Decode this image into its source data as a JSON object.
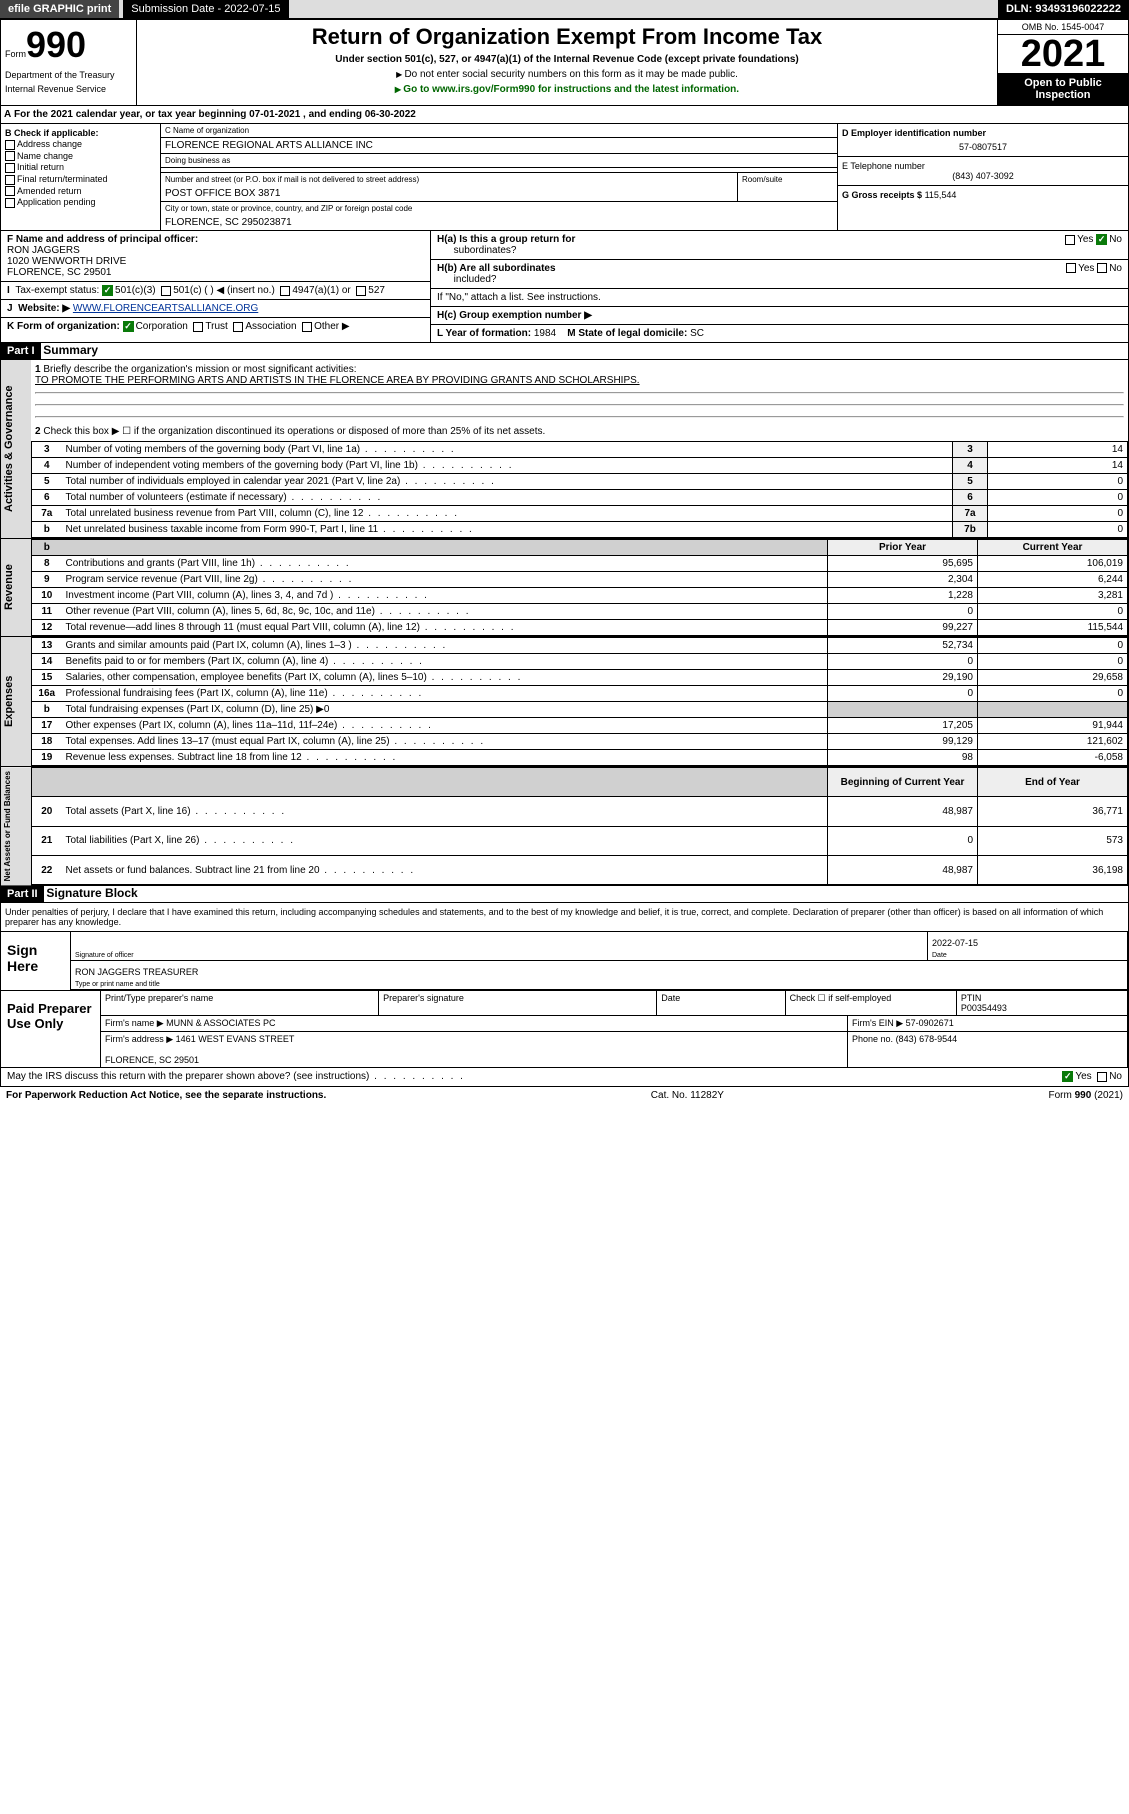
{
  "topbar": {
    "efile": "efile GRAPHIC print",
    "subdate_label": "Submission Date - 2022-07-15",
    "dln": "DLN: 93493196022222"
  },
  "header": {
    "form_word": "Form",
    "form_no": "990",
    "title": "Return of Organization Exempt From Income Tax",
    "subtitle": "Under section 501(c), 527, or 4947(a)(1) of the Internal Revenue Code (except private foundations)",
    "warn": "Do not enter social security numbers on this form as it may be made public.",
    "go": "Go to www.irs.gov/Form990 for instructions and the latest information.",
    "dept": "Department of the Treasury",
    "irs": "Internal Revenue Service",
    "omb": "OMB No. 1545-0047",
    "year": "2021",
    "open": "Open to Public",
    "inspect": "Inspection"
  },
  "A": {
    "text": "For the 2021 calendar year, or tax year beginning 07-01-2021   , and ending 06-30-2022"
  },
  "B": {
    "hdr": "B Check if applicable:",
    "items": [
      "Address change",
      "Name change",
      "Initial return",
      "Final return/terminated",
      "Amended return",
      "Application pending"
    ]
  },
  "C": {
    "name_lbl": "C Name of organization",
    "name": "FLORENCE REGIONAL ARTS ALLIANCE INC",
    "dba_lbl": "Doing business as",
    "dba": "",
    "addr_lbl": "Number and street (or P.O. box if mail is not delivered to street address)",
    "room_lbl": "Room/suite",
    "addr": "POST OFFICE BOX 3871",
    "city_lbl": "City or town, state or province, country, and ZIP or foreign postal code",
    "city": "FLORENCE, SC  295023871"
  },
  "D": {
    "lbl": "D Employer identification number",
    "val": "57-0807517"
  },
  "E": {
    "lbl": "E Telephone number",
    "val": "(843) 407-3092"
  },
  "G": {
    "lbl": "G Gross receipts $",
    "val": "115,544"
  },
  "F": {
    "lbl": "F  Name and address of principal officer:",
    "name": "RON JAGGERS",
    "addr1": "1020 WENWORTH DRIVE",
    "addr2": "FLORENCE, SC  29501"
  },
  "H": {
    "a": "H(a)  Is this a group return for",
    "a2": "subordinates?",
    "b": "H(b)  Are all subordinates",
    "b2": "included?",
    "note": "If \"No,\" attach a list. See instructions.",
    "c": "H(c)  Group exemption number ▶",
    "yes": "Yes",
    "no": "No"
  },
  "I": {
    "lbl": "Tax-exempt status:",
    "opts": [
      "501(c)(3)",
      "501(c) (  ) ◀ (insert no.)",
      "4947(a)(1) or",
      "527"
    ]
  },
  "J": {
    "lbl": "Website: ▶",
    "val": "WWW.FLORENCEARTSALLIANCE.ORG"
  },
  "K": {
    "lbl": "K Form of organization:",
    "opts": [
      "Corporation",
      "Trust",
      "Association",
      "Other ▶"
    ]
  },
  "L": {
    "lbl": "L Year of formation:",
    "val": "1984"
  },
  "M": {
    "lbl": "M State of legal domicile:",
    "val": "SC"
  },
  "part1": {
    "hdr": "Part I",
    "title": "Summary"
  },
  "summary_q1": {
    "num": "1",
    "text": "Briefly describe the organization's mission or most significant activities:",
    "ans": "TO PROMOTE THE PERFORMING ARTS AND ARTISTS IN THE FLORENCE AREA BY PROVIDING GRANTS AND SCHOLARSHIPS."
  },
  "summary_q2": {
    "num": "2",
    "text": "Check this box ▶ ☐  if the organization discontinued its operations or disposed of more than 25% of its net assets."
  },
  "gov_lines": [
    {
      "n": "3",
      "t": "Number of voting members of the governing body (Part VI, line 1a)",
      "box": "3",
      "v": "14"
    },
    {
      "n": "4",
      "t": "Number of independent voting members of the governing body (Part VI, line 1b)",
      "box": "4",
      "v": "14"
    },
    {
      "n": "5",
      "t": "Total number of individuals employed in calendar year 2021 (Part V, line 2a)",
      "box": "5",
      "v": "0"
    },
    {
      "n": "6",
      "t": "Total number of volunteers (estimate if necessary)",
      "box": "6",
      "v": "0"
    },
    {
      "n": "7a",
      "t": "Total unrelated business revenue from Part VIII, column (C), line 12",
      "box": "7a",
      "v": "0"
    },
    {
      "n": "b",
      "t": "Net unrelated business taxable income from Form 990-T, Part I, line 11",
      "box": "7b",
      "v": "0"
    }
  ],
  "cols": {
    "prior": "Prior Year",
    "current": "Current Year",
    "begin": "Beginning of Current Year",
    "end": "End of Year"
  },
  "revenue": [
    {
      "n": "8",
      "t": "Contributions and grants (Part VIII, line 1h)",
      "p": "95,695",
      "c": "106,019"
    },
    {
      "n": "9",
      "t": "Program service revenue (Part VIII, line 2g)",
      "p": "2,304",
      "c": "6,244"
    },
    {
      "n": "10",
      "t": "Investment income (Part VIII, column (A), lines 3, 4, and 7d )",
      "p": "1,228",
      "c": "3,281"
    },
    {
      "n": "11",
      "t": "Other revenue (Part VIII, column (A), lines 5, 6d, 8c, 9c, 10c, and 11e)",
      "p": "0",
      "c": "0"
    },
    {
      "n": "12",
      "t": "Total revenue—add lines 8 through 11 (must equal Part VIII, column (A), line 12)",
      "p": "99,227",
      "c": "115,544"
    }
  ],
  "expenses": [
    {
      "n": "13",
      "t": "Grants and similar amounts paid (Part IX, column (A), lines 1–3 )",
      "p": "52,734",
      "c": "0"
    },
    {
      "n": "14",
      "t": "Benefits paid to or for members (Part IX, column (A), line 4)",
      "p": "0",
      "c": "0"
    },
    {
      "n": "15",
      "t": "Salaries, other compensation, employee benefits (Part IX, column (A), lines 5–10)",
      "p": "29,190",
      "c": "29,658"
    },
    {
      "n": "16a",
      "t": "Professional fundraising fees (Part IX, column (A), line 11e)",
      "p": "0",
      "c": "0"
    },
    {
      "n": "b",
      "t": "Total fundraising expenses (Part IX, column (D), line 25) ▶0",
      "p": "",
      "c": "",
      "shade": true
    },
    {
      "n": "17",
      "t": "Other expenses (Part IX, column (A), lines 11a–11d, 11f–24e)",
      "p": "17,205",
      "c": "91,944"
    },
    {
      "n": "18",
      "t": "Total expenses. Add lines 13–17 (must equal Part IX, column (A), line 25)",
      "p": "99,129",
      "c": "121,602"
    },
    {
      "n": "19",
      "t": "Revenue less expenses. Subtract line 18 from line 12",
      "p": "98",
      "c": "-6,058"
    }
  ],
  "netassets": [
    {
      "n": "20",
      "t": "Total assets (Part X, line 16)",
      "p": "48,987",
      "c": "36,771"
    },
    {
      "n": "21",
      "t": "Total liabilities (Part X, line 26)",
      "p": "0",
      "c": "573"
    },
    {
      "n": "22",
      "t": "Net assets or fund balances. Subtract line 21 from line 20",
      "p": "48,987",
      "c": "36,198"
    }
  ],
  "vlabels": {
    "gov": "Activities & Governance",
    "rev": "Revenue",
    "exp": "Expenses",
    "net": "Net Assets or Fund Balances"
  },
  "part2": {
    "hdr": "Part II",
    "title": "Signature Block"
  },
  "decl": "Under penalties of perjury, I declare that I have examined this return, including accompanying schedules and statements, and to the best of my knowledge and belief, it is true, correct, and complete. Declaration of preparer (other than officer) is based on all information of which preparer has any knowledge.",
  "sign": {
    "here": "Sign Here",
    "sig_lbl": "Signature of officer",
    "date_lbl": "Date",
    "date": "2022-07-15",
    "name": "RON JAGGERS  TREASURER",
    "name_lbl": "Type or print name and title"
  },
  "prep": {
    "hdr": "Paid Preparer Use Only",
    "c1": "Print/Type preparer's name",
    "c2": "Preparer's signature",
    "c3": "Date",
    "c4": "Check ☐ if self-employed",
    "c5": "PTIN",
    "ptin": "P00354493",
    "firm_lbl": "Firm's name   ▶",
    "firm": "MUNN & ASSOCIATES PC",
    "ein_lbl": "Firm's EIN ▶",
    "ein": "57-0902671",
    "addr_lbl": "Firm's address ▶",
    "addr": "1461 WEST EVANS STREET",
    "addr2": "FLORENCE, SC  29501",
    "phone_lbl": "Phone no.",
    "phone": "(843) 678-9544"
  },
  "may": {
    "text": "May the IRS discuss this return with the preparer shown above? (see instructions)",
    "yes": "Yes",
    "no": "No"
  },
  "foot": {
    "l": "For Paperwork Reduction Act Notice, see the separate instructions.",
    "m": "Cat. No. 11282Y",
    "r": "Form 990 (2021)"
  }
}
